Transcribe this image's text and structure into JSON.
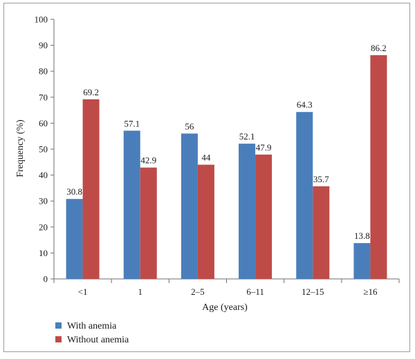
{
  "chart_data": {
    "type": "bar",
    "categories": [
      "<1",
      "1",
      "2–5",
      "6–11",
      "12–15",
      "≥16"
    ],
    "series": [
      {
        "name": "With anemia",
        "values": [
          30.8,
          57.1,
          56,
          52.1,
          64.3,
          13.8
        ],
        "labels": [
          "30.8",
          "57.1",
          "56",
          "52.1",
          "64.3",
          "13.8"
        ],
        "color": "#4a7ebb"
      },
      {
        "name": "Without anemia",
        "values": [
          69.2,
          42.9,
          44,
          47.9,
          35.7,
          86.2
        ],
        "labels": [
          "69.2",
          "42.9",
          "44",
          "47.9",
          "35.7",
          "86.2"
        ],
        "color": "#be4b48"
      }
    ],
    "title": "",
    "xlabel": "Age (years)",
    "ylabel": "Frequency (%)",
    "ylim": [
      0,
      100
    ],
    "yticks": [
      0,
      10,
      20,
      30,
      40,
      50,
      60,
      70,
      80,
      90,
      100
    ],
    "grid": false,
    "legend": "bottom-left"
  }
}
